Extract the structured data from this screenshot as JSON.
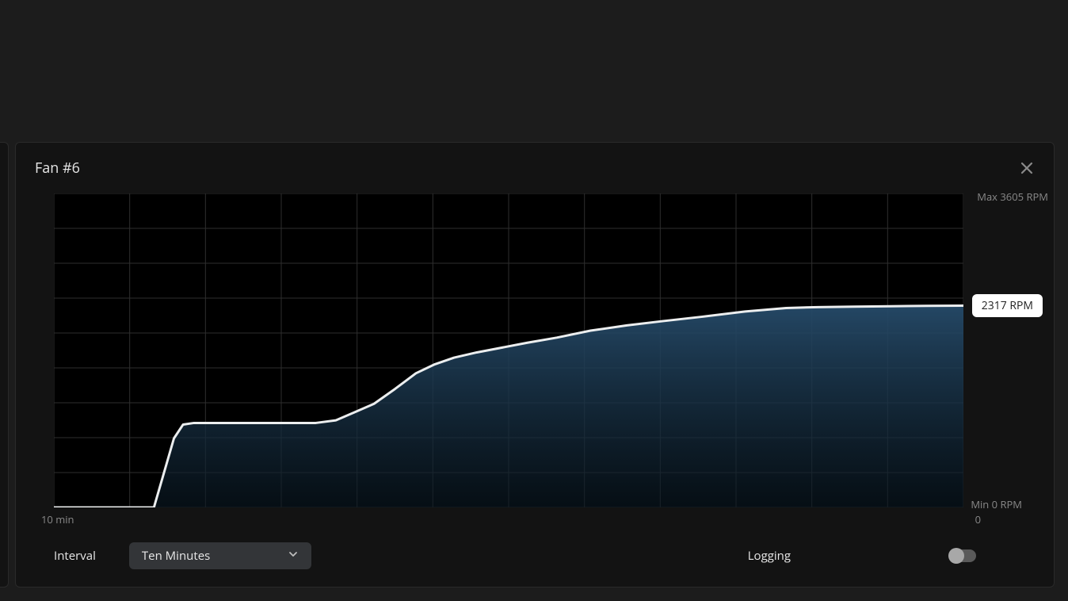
{
  "panel": {
    "title": "Fan #6",
    "chart": {
      "type": "area",
      "background_color": "#000000",
      "grid_color": "#2e2e2e",
      "grid_rows": 9,
      "grid_cols": 12,
      "line_color": "#eceeef",
      "line_width": 3,
      "fill_top_color": "#264b6a",
      "fill_bottom_color": "#0a1822",
      "x_left_label": "10 min",
      "x_right_label": "0",
      "y_max_label": "Max 3605 RPM",
      "y_min_label": "Min 0 RPM",
      "y_min_value": 0,
      "y_max_value": 3605,
      "current_label": "2317 RPM",
      "current_value": 2317,
      "points": [
        [
          0.0,
          0
        ],
        [
          0.11,
          0
        ],
        [
          0.132,
          793
        ],
        [
          0.142,
          951
        ],
        [
          0.154,
          970
        ],
        [
          0.288,
          970
        ],
        [
          0.31,
          1000
        ],
        [
          0.33,
          1090
        ],
        [
          0.352,
          1190
        ],
        [
          0.375,
          1360
        ],
        [
          0.398,
          1540
        ],
        [
          0.418,
          1640
        ],
        [
          0.44,
          1720
        ],
        [
          0.465,
          1780
        ],
        [
          0.49,
          1830
        ],
        [
          0.52,
          1890
        ],
        [
          0.553,
          1950
        ],
        [
          0.59,
          2030
        ],
        [
          0.63,
          2090
        ],
        [
          0.67,
          2140
        ],
        [
          0.713,
          2190
        ],
        [
          0.76,
          2250
        ],
        [
          0.805,
          2290
        ],
        [
          0.84,
          2300
        ],
        [
          0.88,
          2305
        ],
        [
          0.92,
          2310
        ],
        [
          0.96,
          2315
        ],
        [
          1.0,
          2317
        ]
      ]
    },
    "controls": {
      "interval_label": "Interval",
      "interval_value": "Ten Minutes",
      "logging_label": "Logging",
      "logging_value": false
    }
  },
  "colors": {
    "page_bg": "#1c1c1c",
    "panel_bg": "#131313",
    "text_primary": "#e8e8e8",
    "text_secondary": "#8a8a8a",
    "dropdown_bg": "#333538",
    "toggle_track": "#5a5a5a",
    "toggle_knob": "#a8a8a8",
    "badge_bg": "#ffffff",
    "badge_text": "#222222"
  }
}
